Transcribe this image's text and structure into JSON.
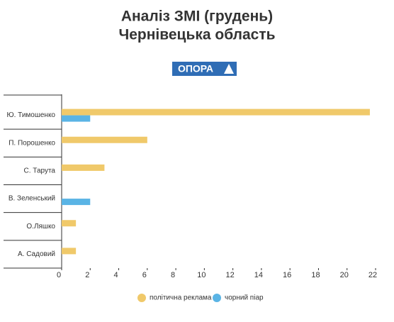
{
  "chart_data": {
    "type": "hbar",
    "title": "Аналіз ЗМІ (грудень)",
    "subtitle": "Чернівецька область",
    "logo": "ОПОРА",
    "categories": [
      "Ю. Тимошенко",
      "П. Порошенко",
      "С. Тарута",
      "В. Зеленський",
      "О.Ляшко",
      "А. Садовий"
    ],
    "series": [
      {
        "name": "політична реклама",
        "color": "#f0c96a",
        "values": [
          21.6,
          6,
          3,
          null,
          1,
          1
        ]
      },
      {
        "name": "чорний піар",
        "color": "#5ab4e5",
        "values": [
          2,
          null,
          null,
          2,
          null,
          null
        ]
      }
    ],
    "xlim": [
      0,
      22
    ],
    "xticks": [
      0,
      2,
      4,
      6,
      8,
      10,
      12,
      14,
      16,
      18,
      20,
      22
    ],
    "legend": "bottom"
  }
}
